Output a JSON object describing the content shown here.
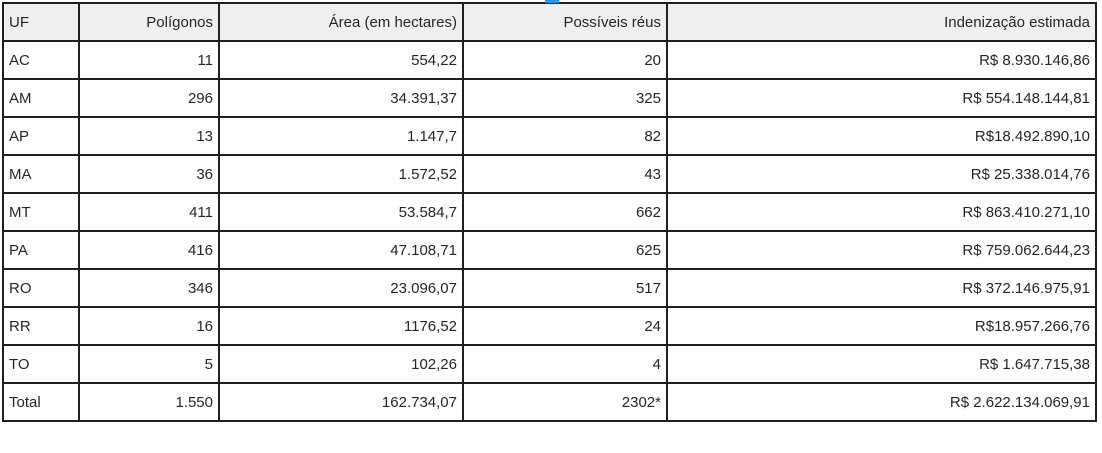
{
  "artifact": {
    "blue_marker_color": "#2196f3"
  },
  "colors": {
    "header_background": "#efefef",
    "row_background": "#ffffff",
    "border": "#1f1f1f",
    "text": "#262626"
  },
  "table": {
    "columns": [
      {
        "label": "UF"
      },
      {
        "label": "Polígonos"
      },
      {
        "label": "Área (em hectares)"
      },
      {
        "label": "Possíveis réus"
      },
      {
        "label": "Indenização estimada"
      }
    ],
    "rows": [
      {
        "uf": "AC",
        "poligonos": "11",
        "area": "554,22",
        "reus": "20",
        "indenizacao": "R$ 8.930.146,86"
      },
      {
        "uf": "AM",
        "poligonos": "296",
        "area": "34.391,37",
        "reus": "325",
        "indenizacao": "R$ 554.148.144,81"
      },
      {
        "uf": "AP",
        "poligonos": "13",
        "area": "1.147,7",
        "reus": "82",
        "indenizacao": "R$18.492.890,10"
      },
      {
        "uf": "MA",
        "poligonos": "36",
        "area": "1.572,52",
        "reus": "43",
        "indenizacao": "R$ 25.338.014,76"
      },
      {
        "uf": "MT",
        "poligonos": "411",
        "area": "53.584,7",
        "reus": "662",
        "indenizacao": "R$ 863.410.271,10"
      },
      {
        "uf": "PA",
        "poligonos": "416",
        "area": "47.108,71",
        "reus": "625",
        "indenizacao": "R$ 759.062.644,23"
      },
      {
        "uf": "RO",
        "poligonos": "346",
        "area": "23.096,07",
        "reus": "517",
        "indenizacao": "R$ 372.146.975,91"
      },
      {
        "uf": "RR",
        "poligonos": "16",
        "area": "1176,52",
        "reus": "24",
        "indenizacao": "R$18.957.266,76"
      },
      {
        "uf": "TO",
        "poligonos": "5",
        "area": "102,26",
        "reus": "4",
        "indenizacao": "R$ 1.647.715,38"
      },
      {
        "uf": "Total",
        "poligonos": "1.550",
        "area": "162.734,07",
        "reus": "2302*",
        "indenizacao": "R$ 2.622.134.069,91"
      }
    ]
  }
}
